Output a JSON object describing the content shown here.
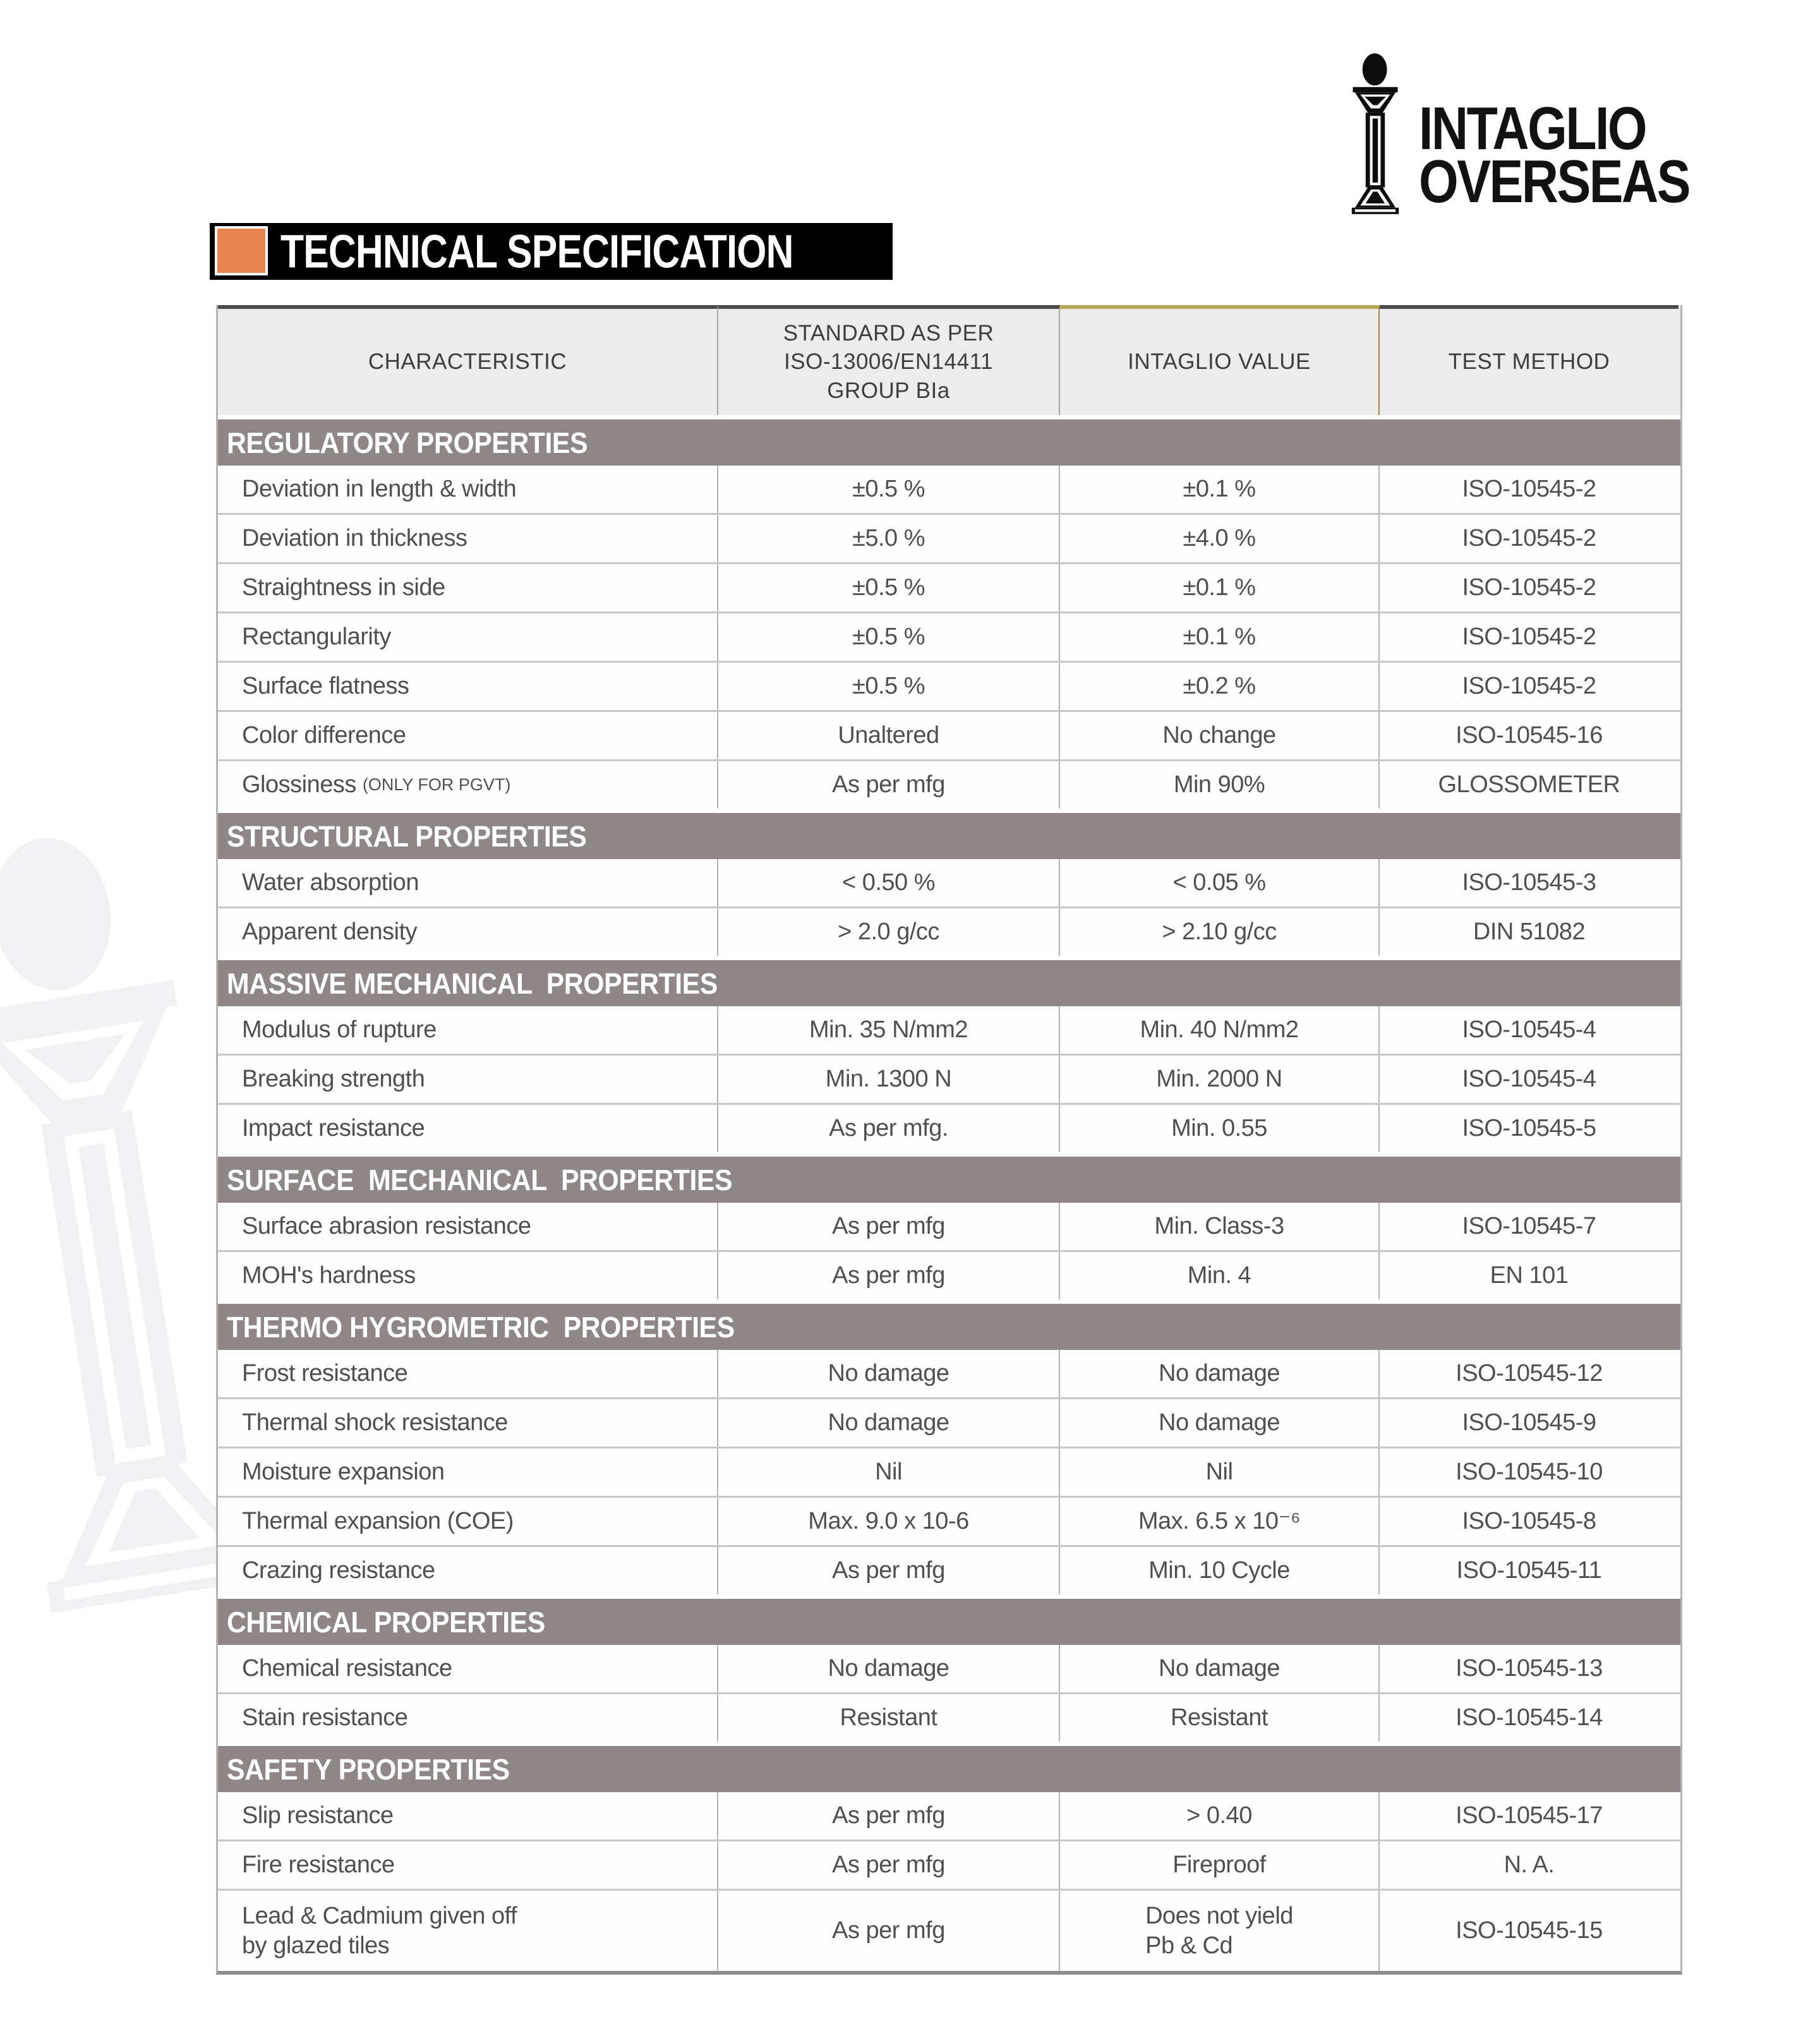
{
  "logo": {
    "name_line1": "INTAGLIO",
    "name_line2": "OVERSEAS",
    "icon": "column-pillar-icon"
  },
  "title": "TECHNICAL SPECIFICATION",
  "colors": {
    "accent_orange": "#e8854e",
    "title_bar_bg": "#000000",
    "section_band": "#8f8787",
    "header_bg": "#ececec",
    "gold_divider": "#a3893a",
    "body_text": "#4f4f4f"
  },
  "table": {
    "headers": [
      "CHARACTERISTIC",
      "STANDARD AS PER\nISO-13006/EN14411\nGROUP BIa",
      "INTAGLIO VALUE",
      "TEST METHOD"
    ],
    "sections": [
      {
        "title": "REGULATORY PROPERTIES",
        "rows": [
          {
            "characteristic": "Deviation in length & width",
            "standard": "±0.5 %",
            "value": "±0.1 %",
            "method": "ISO-10545-2"
          },
          {
            "characteristic": "Deviation in thickness",
            "standard": "±5.0 %",
            "value": "±4.0 %",
            "method": "ISO-10545-2"
          },
          {
            "characteristic": "Straightness in side",
            "standard": "±0.5 %",
            "value": "±0.1 %",
            "method": "ISO-10545-2"
          },
          {
            "characteristic": "Rectangularity",
            "standard": "±0.5 %",
            "value": "±0.1 %",
            "method": "ISO-10545-2"
          },
          {
            "characteristic": "Surface flatness",
            "standard": "±0.5 %",
            "value": "±0.2 %",
            "method": "ISO-10545-2"
          },
          {
            "characteristic": "Color difference",
            "standard": "Unaltered",
            "value": "No change",
            "method": "ISO-10545-16"
          },
          {
            "characteristic": "Glossiness",
            "characteristic_small": "(ONLY FOR PGVT)",
            "standard": "As per mfg",
            "value": "Min 90%",
            "method": "GLOSSOMETER"
          }
        ]
      },
      {
        "title": "STRUCTURAL PROPERTIES",
        "rows": [
          {
            "characteristic": "Water absorption",
            "standard": "< 0.50 %",
            "value": "< 0.05 %",
            "method": "ISO-10545-3"
          },
          {
            "characteristic": "Apparent density",
            "standard": "> 2.0 g/cc",
            "value": "> 2.10 g/cc",
            "method": "DIN 51082"
          }
        ]
      },
      {
        "title": "MASSIVE MECHANICAL  PROPERTIES",
        "rows": [
          {
            "characteristic": "Modulus of rupture",
            "standard": "Min. 35 N/mm2",
            "value": "Min. 40 N/mm2",
            "method": "ISO-10545-4"
          },
          {
            "characteristic": "Breaking strength",
            "standard": "Min. 1300 N",
            "value": "Min. 2000 N",
            "method": "ISO-10545-4"
          },
          {
            "characteristic": "Impact resistance",
            "standard": "As per mfg.",
            "value": "Min. 0.55",
            "method": "ISO-10545-5"
          }
        ]
      },
      {
        "title": "SURFACE  MECHANICAL  PROPERTIES",
        "rows": [
          {
            "characteristic": "Surface abrasion resistance",
            "standard": "As per mfg",
            "value": "Min. Class-3",
            "method": "ISO-10545-7"
          },
          {
            "characteristic": "MOH's hardness",
            "standard": "As per mfg",
            "value": "Min. 4",
            "method": "EN 101"
          }
        ]
      },
      {
        "title": "THERMO HYGROMETRIC  PROPERTIES",
        "rows": [
          {
            "characteristic": "Frost resistance",
            "standard": "No damage",
            "value": "No damage",
            "method": "ISO-10545-12"
          },
          {
            "characteristic": "Thermal shock resistance",
            "standard": "No damage",
            "value": "No damage",
            "method": "ISO-10545-9"
          },
          {
            "characteristic": "Moisture expansion",
            "standard": "Nil",
            "value": "Nil",
            "method": "ISO-10545-10"
          },
          {
            "characteristic": "Thermal expansion (COE)",
            "standard": "Max. 9.0 x 10-6",
            "value": "Max. 6.5 x 10⁻⁶",
            "method": "ISO-10545-8"
          },
          {
            "characteristic": "Crazing resistance",
            "standard": "As per mfg",
            "value": "Min. 10 Cycle",
            "method": "ISO-10545-11"
          }
        ]
      },
      {
        "title": "CHEMICAL PROPERTIES",
        "rows": [
          {
            "characteristic": "Chemical resistance",
            "standard": "No damage",
            "value": "No damage",
            "method": "ISO-10545-13"
          },
          {
            "characteristic": "Stain resistance",
            "standard": "Resistant",
            "value": "Resistant",
            "method": "ISO-10545-14"
          }
        ]
      },
      {
        "title": "SAFETY PROPERTIES",
        "rows": [
          {
            "characteristic": "Slip resistance",
            "standard": "As per mfg",
            "value": "> 0.40",
            "method": "ISO-10545-17"
          },
          {
            "characteristic": "Fire resistance",
            "standard": "As per mfg",
            "value": "Fireproof",
            "method": "N. A."
          },
          {
            "characteristic": "Lead & Cadmium given off\nby glazed tiles",
            "standard": "As per mfg",
            "value": "Does not yield\nPb & Cd",
            "method": "ISO-10545-15"
          }
        ]
      }
    ]
  }
}
